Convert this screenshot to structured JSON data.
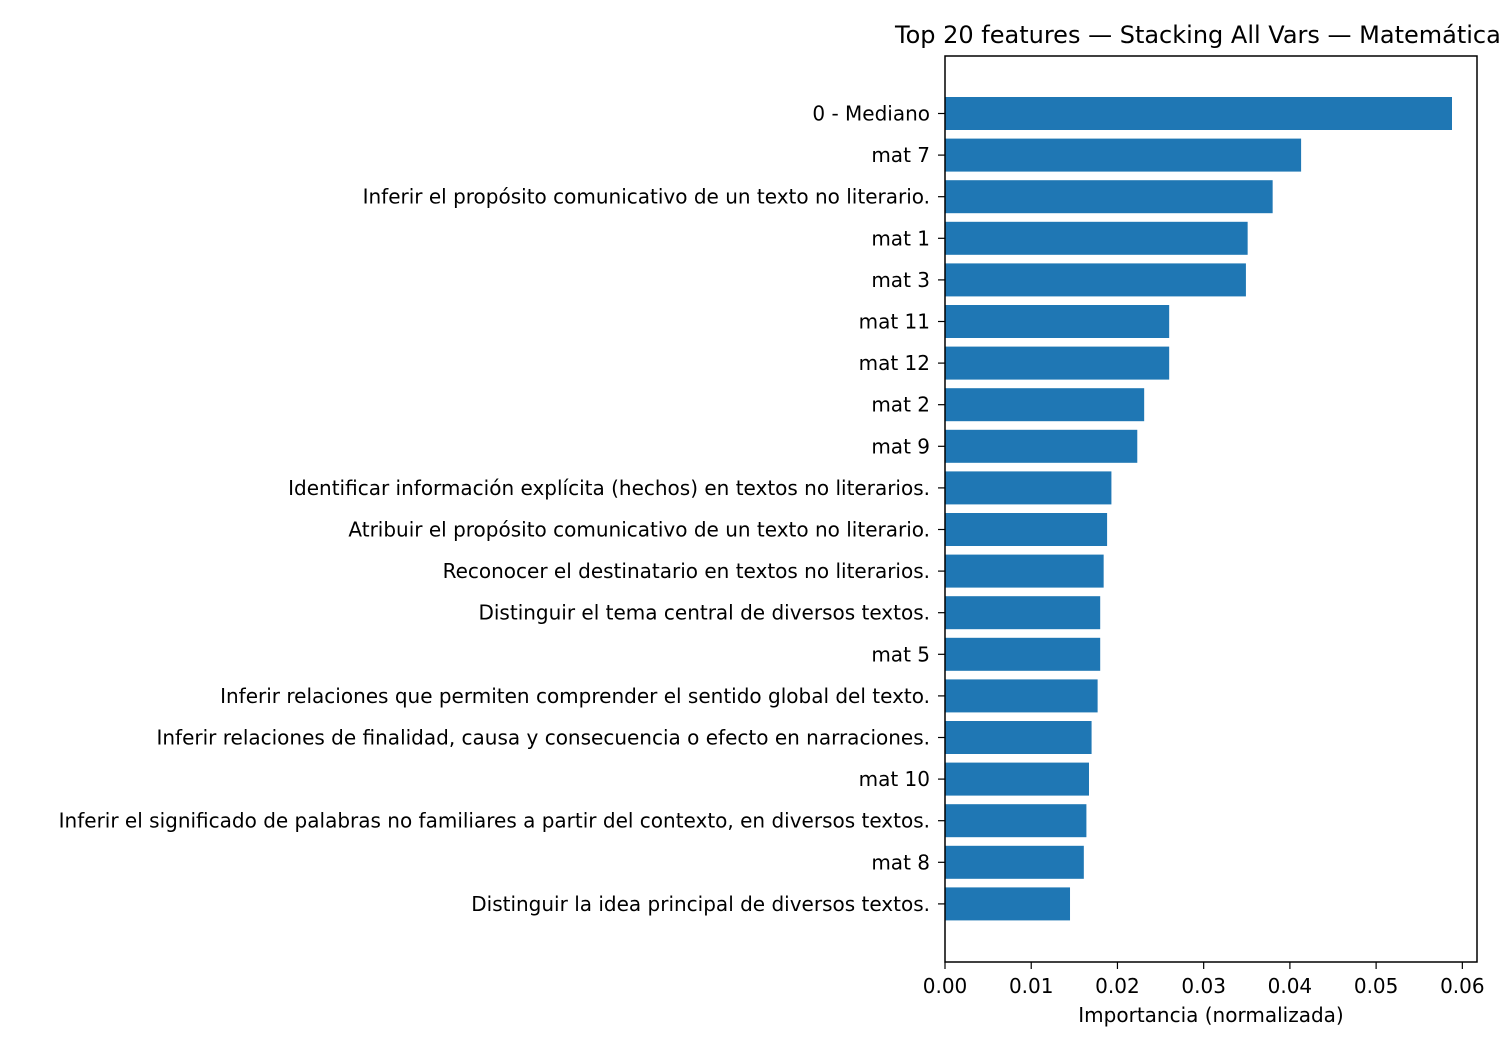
{
  "chart_data": {
    "type": "bar",
    "orientation": "horizontal",
    "title": "Top 20 features — Stacking All Vars — Matemática",
    "xlabel": "Importancia (normalizada)",
    "ylabel": "",
    "xlim": [
      0.0,
      0.0617
    ],
    "xticks": [
      "0.00",
      "0.01",
      "0.02",
      "0.03",
      "0.04",
      "0.05",
      "0.06"
    ],
    "bar_color": "#1f77b4",
    "grid": false,
    "categories": [
      "0 - Mediano",
      "mat 7",
      "Inferir el propósito comunicativo de un texto no literario.",
      "mat 1",
      "mat 3",
      "mat 11",
      "mat 12",
      "mat 2",
      "mat 9",
      "Identificar información explícita (hechos) en textos no literarios.",
      "Atribuir el propósito comunicativo de un texto no literario.",
      "Reconocer el destinatario en textos no literarios.",
      "Distinguir el tema central de diversos textos.",
      "mat 5",
      "Inferir relaciones que permiten comprender el sentido global del texto.",
      "Inferir relaciones de finalidad, causa y consecuencia o efecto en narraciones.",
      "mat 10",
      "Inferir el significado de palabras no familiares a partir del contexto, en diversos textos.",
      "mat 8",
      "Distinguir la idea principal de diversos textos."
    ],
    "values": [
      0.0588,
      0.0413,
      0.038,
      0.0351,
      0.0349,
      0.026,
      0.026,
      0.0231,
      0.0223,
      0.0193,
      0.0188,
      0.0184,
      0.018,
      0.018,
      0.0177,
      0.017,
      0.0167,
      0.0164,
      0.0161,
      0.0145
    ]
  }
}
